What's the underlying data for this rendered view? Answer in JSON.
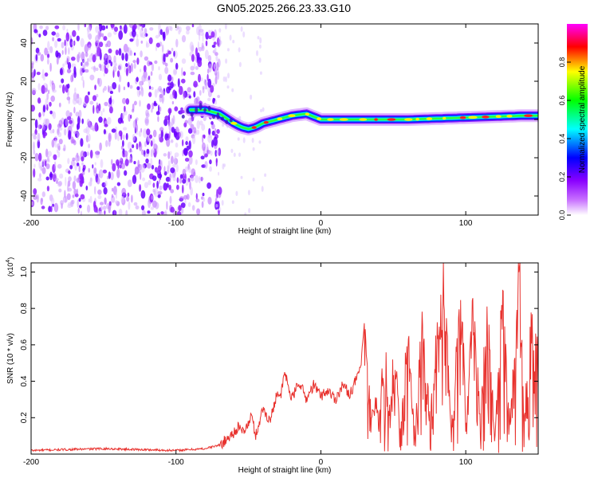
{
  "title": "GN05.2025.266.23.33.G10",
  "chart_data": [
    {
      "type": "heatmap",
      "name": "spectrogram",
      "xlabel": "Height of straight line (km)",
      "ylabel": "Frequency (Hz)",
      "xlim": [
        -200,
        150
      ],
      "ylim": [
        -50,
        50
      ],
      "x_ticks": [
        -200,
        -100,
        0,
        100
      ],
      "y_ticks": [
        -40,
        -20,
        0,
        20,
        40
      ],
      "colorbar": {
        "label": "Normalized spectral amplitude",
        "range": [
          0,
          1
        ],
        "ticks": [
          "0.0",
          "0.2",
          "0.4",
          "0.6",
          "0.8"
        ],
        "colors": [
          "#ffffff",
          "#b800ff",
          "#0000ff",
          "#00ffff",
          "#00ff00",
          "#ffff00",
          "#ff0000",
          "#ff00ff"
        ]
      },
      "noise_region": {
        "x_start": -200,
        "x_end": -75
      },
      "ridge": {
        "x": [
          -90,
          -80,
          -70,
          -60,
          -55,
          -50,
          -45,
          -40,
          -30,
          -20,
          -10,
          0,
          20,
          40,
          60,
          80,
          100,
          120,
          140,
          150
        ],
        "freq": [
          5,
          5,
          3,
          -2,
          -4,
          -5,
          -4,
          -2,
          0,
          2,
          3,
          0,
          0,
          0,
          0,
          0.5,
          1,
          1.5,
          2,
          2
        ]
      }
    },
    {
      "type": "line",
      "name": "snr",
      "xlabel": "Height of straight line (km)",
      "ylabel": "SNR (10 * v/v)",
      "y_scale_label": "(x10",
      "y_scale_exp": "4",
      "y_scale_close": ")",
      "xlim": [
        -200,
        150
      ],
      "ylim": [
        0,
        1.05
      ],
      "x_ticks": [
        -200,
        -100,
        0,
        100
      ],
      "y_ticks": [
        "0.2",
        "0.4",
        "0.6",
        "0.8",
        "1.0"
      ],
      "color": "#e8322e",
      "series": [
        {
          "name": "SNR",
          "x": [
            -200,
            -150,
            -100,
            -80,
            -70,
            -65,
            -60,
            -57,
            -55,
            -50,
            -48,
            -45,
            -40,
            -35,
            -30,
            -28,
            -25,
            -20,
            -15,
            -10,
            -5,
            0,
            5,
            10,
            15,
            20,
            25,
            28,
            30,
            32,
            35,
            38,
            40,
            42,
            45,
            48,
            50,
            55,
            60,
            65,
            70,
            75,
            80,
            85,
            90,
            95,
            97,
            100,
            105,
            110,
            115,
            120,
            125,
            130,
            135,
            137,
            140,
            145,
            150
          ],
          "y": [
            0.02,
            0.03,
            0.02,
            0.03,
            0.05,
            0.08,
            0.12,
            0.15,
            0.12,
            0.16,
            0.22,
            0.1,
            0.25,
            0.18,
            0.35,
            0.3,
            0.45,
            0.3,
            0.4,
            0.3,
            0.38,
            0.32,
            0.35,
            0.3,
            0.38,
            0.33,
            0.42,
            0.5,
            0.72,
            0.4,
            0.22,
            0.3,
            0.12,
            0.38,
            0.45,
            0.18,
            0.55,
            0.2,
            0.62,
            0.1,
            0.68,
            0.2,
            0.6,
            0.9,
            0.1,
            0.7,
            1.05,
            0.08,
            0.8,
            0.2,
            0.75,
            0.1,
            0.9,
            0.15,
            0.6,
            1.03,
            0.2,
            0.65,
            0.5
          ]
        }
      ]
    }
  ]
}
